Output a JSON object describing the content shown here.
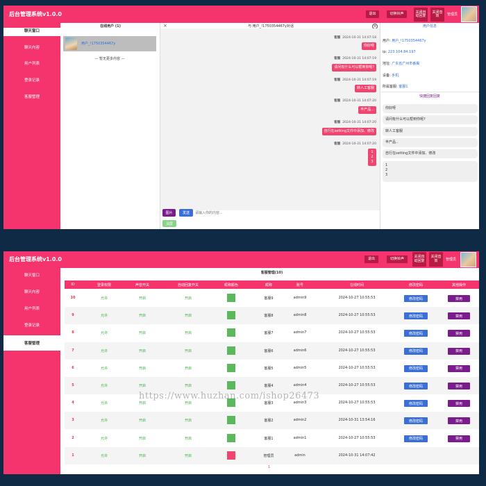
{
  "app_title": "后台管理系统v1.0.0",
  "colors": {
    "accent": "#f5336c",
    "dark_button": "#b81a44",
    "blue": "#3b6fd6",
    "purple": "#7a1c8c",
    "green": "#3cb043",
    "link": "#2f6fd6"
  },
  "top_buttons": {
    "logout": "退出",
    "switch_bell": "切换铃声",
    "auto_close_line1": "关闭自",
    "auto_close_line2": "动回复",
    "close_sound_line1": "关闭音",
    "close_sound_line2": "效",
    "admin_name": "管理员"
  },
  "sidebar": {
    "items": [
      {
        "label": "聊天窗口"
      },
      {
        "label": "聊天内容"
      },
      {
        "label": "用户列表"
      },
      {
        "label": "登录记录"
      },
      {
        "label": "客服管理"
      }
    ]
  },
  "chat": {
    "online_users_header": "在线用户 (1)",
    "user_card_name": "用户_!1750354467y",
    "no_more_text": "— 暂无更多内容 —",
    "close_glyph": "×",
    "conversation_header": "与 用户_!1750354467y对话",
    "messages": [
      {
        "sender": "客服",
        "time": "2024-10-31 14:07:18",
        "text": "你好呀"
      },
      {
        "sender": "客服",
        "time": "2024-10-31 14:07:19",
        "text": "请问有什么可以帮到你呢?"
      },
      {
        "sender": "客服",
        "time": "2024-10-31 14:07:19",
        "text": "转人工客服"
      },
      {
        "sender": "客服",
        "time": "2024-10-31 14:07:20",
        "text": "丰产品..."
      },
      {
        "sender": "客服",
        "time": "2024-10-31 14:07:20",
        "text": "自行在setting文件中添加、修改"
      },
      {
        "sender": "客服",
        "time": "2024-10-31 14:07:20",
        "lines": [
          "1",
          "2",
          "3"
        ]
      }
    ],
    "image_button": "图片",
    "send_button": "发送",
    "input_placeholder": "请输入你的内容...",
    "clear_button": "清屏"
  },
  "user_info": {
    "header": "用户信息",
    "rows": [
      {
        "key": "用户:",
        "value": "用户_!1750354467y"
      },
      {
        "key": "ip:",
        "value": "223.104.84.197"
      },
      {
        "key": "地址:",
        "value": "广东省广州市番禺"
      },
      {
        "key": "设备:",
        "value": "手机"
      },
      {
        "key": "所属客服:",
        "value": "客服1"
      }
    ],
    "quick_reply_header": "快捷回复回复",
    "quick_replies": [
      "你好呀",
      "请问有什么可以帮到你呢?",
      "转人工客服",
      "丰产品..",
      "自行在setting文件中添加、修改",
      "1\n2\n3"
    ]
  },
  "cs_table": {
    "title": "客服管理(10)",
    "columns": [
      "ID",
      "登录权限",
      "声音开关",
      "自动回复开关",
      "昵称颜色",
      "昵称",
      "账号",
      "在线时间",
      "修改密码",
      "其他操作"
    ],
    "change_pwd_label": "修改密码",
    "disable_label": "禁用",
    "rows": [
      {
        "id": "10",
        "login": "允许",
        "sound": "开启",
        "auto": "开启",
        "color": "#5cb85c",
        "nick": "客服9",
        "account": "admin9",
        "time": "2024-10-27 10:55:53"
      },
      {
        "id": "9",
        "login": "允许",
        "sound": "开启",
        "auto": "开启",
        "color": "#5cb85c",
        "nick": "客服8",
        "account": "admin8",
        "time": "2024-10-27 10:55:53"
      },
      {
        "id": "8",
        "login": "允许",
        "sound": "开启",
        "auto": "开启",
        "color": "#5cb85c",
        "nick": "客服7",
        "account": "admin7",
        "time": "2024-10-27 10:55:53"
      },
      {
        "id": "7",
        "login": "允许",
        "sound": "开启",
        "auto": "开启",
        "color": "#5cb85c",
        "nick": "客服6",
        "account": "admin6",
        "time": "2024-10-27 10:55:53"
      },
      {
        "id": "6",
        "login": "允许",
        "sound": "开启",
        "auto": "开启",
        "color": "#5cb85c",
        "nick": "客服5",
        "account": "admin5",
        "time": "2024-10-27 10:55:53"
      },
      {
        "id": "5",
        "login": "允许",
        "sound": "开启",
        "auto": "开启",
        "color": "#5cb85c",
        "nick": "客服4",
        "account": "admin4",
        "time": "2024-10-27 10:55:53"
      },
      {
        "id": "4",
        "login": "允许",
        "sound": "开启",
        "auto": "开启",
        "color": "#5cb85c",
        "nick": "客服3",
        "account": "admin3",
        "time": "2024-10-27 10:55:53"
      },
      {
        "id": "3",
        "login": "允许",
        "sound": "开启",
        "auto": "开启",
        "color": "#5cb85c",
        "nick": "客服2",
        "account": "admin2",
        "time": "2024-10-31 13:54:16"
      },
      {
        "id": "2",
        "login": "允许",
        "sound": "开启",
        "auto": "开启",
        "color": "#5cb85c",
        "nick": "客服1",
        "account": "admin1",
        "time": "2024-10-27 10:55:53"
      },
      {
        "id": "1",
        "login": "允许",
        "sound": "开启",
        "auto": "开启",
        "color": "#f0456e",
        "nick": "管理员",
        "account": "admin",
        "time": "2024-10-31 14:07:42",
        "no_actions": true
      }
    ],
    "pagination": "1"
  },
  "watermark": "https://www.huzhan.com/ishop26473"
}
